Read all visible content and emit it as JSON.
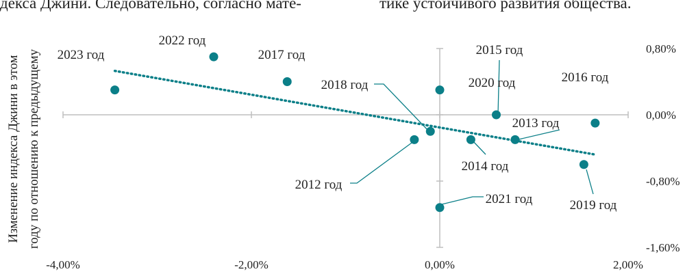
{
  "page_text": {
    "top_left": "декса Джини. Следовательно, согласно мате-",
    "top_right": "тике устойчивого развития общества."
  },
  "chart_data": {
    "type": "scatter",
    "title": "",
    "ylabel_lines": [
      "Изменение индекса Джини в этом",
      "году по отношению к предыдущему"
    ],
    "xlabel": "",
    "xlim": [
      -4.0,
      2.0
    ],
    "ylim": [
      -1.6,
      0.8
    ],
    "x_ticks": [
      -4.0,
      -2.0,
      0.0,
      2.0
    ],
    "x_tick_labels": [
      "-4,00%",
      "-2,00%",
      "0,00%",
      "2,00%"
    ],
    "y_ticks": [
      0.8,
      0.0,
      -0.8,
      -1.6
    ],
    "y_tick_labels": [
      "0,80%",
      "0,00%",
      "-0,80%",
      "-1,60%"
    ],
    "point_color": "#0b7f88",
    "trend_color": "#0b7f88",
    "axis_color": "#bfbfbf",
    "trendline": {
      "x": [
        -3.45,
        1.65
      ],
      "y": [
        0.53,
        -0.48
      ]
    },
    "points": [
      {
        "label": "2023 год",
        "x": -3.45,
        "y": 0.3
      },
      {
        "label": "2022 год",
        "x": -2.4,
        "y": 0.7
      },
      {
        "label": "2017 год",
        "x": -1.62,
        "y": 0.4
      },
      {
        "label": "2018 год",
        "x": -0.1,
        "y": -0.2
      },
      {
        "label": "2020 год",
        "x": 0.0,
        "y": 0.3
      },
      {
        "label": "2015 год",
        "x": 0.6,
        "y": 0.0
      },
      {
        "label": "2016 год",
        "x": 1.65,
        "y": -0.1
      },
      {
        "label": "2013 год",
        "x": 0.8,
        "y": -0.3
      },
      {
        "label": "2014 год",
        "x": 0.33,
        "y": -0.3
      },
      {
        "label": "2012 год",
        "x": -0.27,
        "y": -0.3
      },
      {
        "label": "2019 год",
        "x": 1.53,
        "y": -0.6
      },
      {
        "label": "2021 год",
        "x": 0.0,
        "y": -1.12
      }
    ]
  }
}
